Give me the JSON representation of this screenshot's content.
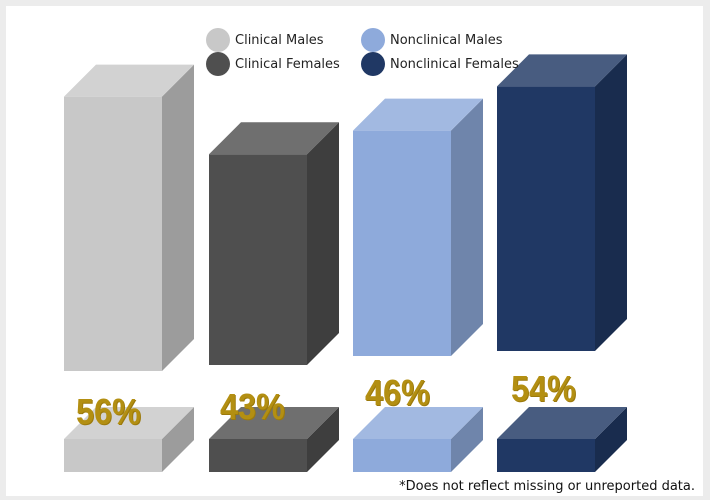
{
  "chart_data": {
    "type": "bar",
    "style": "3d-column",
    "categories": [
      "Clinical Males",
      "Clinical Females",
      "Nonclinical Males",
      "Nonclinical Females"
    ],
    "values": [
      56,
      43,
      46,
      54
    ],
    "value_labels": [
      "56%",
      "43%",
      "46%",
      "54%"
    ],
    "unit": "%",
    "legend_placement": "top-center",
    "grid": false,
    "colors": [
      "#c8c8c8",
      "#4f4f4f",
      "#8eaadb",
      "#203864"
    ],
    "title": "",
    "xlabel": "",
    "ylabel": ""
  },
  "legend": [
    {
      "label": "Clinical Males",
      "color": "#c8c8c8"
    },
    {
      "label": "Clinical Females",
      "color": "#4f4f4f"
    },
    {
      "label": "Nonclinical Males",
      "color": "#8eaadb"
    },
    {
      "label": "Nonclinical Females",
      "color": "#203864"
    }
  ],
  "footnote": "*Does not reflect missing or unreported data."
}
